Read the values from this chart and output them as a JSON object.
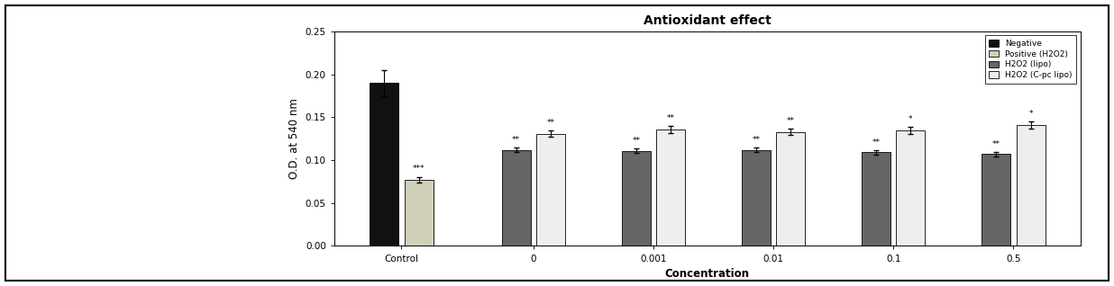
{
  "title": "Antioxidant effect",
  "xlabel": "Concentration",
  "ylabel": "O.D. at 540 nm",
  "categories": [
    "Control",
    "0",
    "0.001",
    "0.01",
    "0.1",
    "0.5"
  ],
  "series": {
    "Negative": {
      "color": "#111111",
      "values": [
        0.19,
        null,
        null,
        null,
        null,
        null
      ],
      "errors": [
        0.015,
        null,
        null,
        null,
        null,
        null
      ]
    },
    "Positive (H2O2)": {
      "color": "#d0d0b8",
      "values": [
        0.077,
        null,
        null,
        null,
        null,
        null
      ],
      "errors": [
        0.003,
        null,
        null,
        null,
        null,
        null
      ]
    },
    "H2O2 (lipo)": {
      "color": "#666666",
      "values": [
        null,
        0.112,
        0.111,
        0.112,
        0.109,
        0.107
      ],
      "errors": [
        null,
        0.003,
        0.003,
        0.003,
        0.003,
        0.003
      ]
    },
    "H2O2 (C-pc lipo)": {
      "color": "#eeeeee",
      "values": [
        null,
        0.131,
        0.136,
        0.133,
        0.135,
        0.141
      ],
      "errors": [
        null,
        0.004,
        0.004,
        0.004,
        0.004,
        0.004
      ]
    }
  },
  "annotations_lipo": [
    "**",
    "**",
    "**",
    "**",
    "**"
  ],
  "annotations_clipo": [
    "**",
    "**",
    "**",
    "*",
    "*"
  ],
  "annotation_positive": "***",
  "ylim": [
    0.0,
    0.25
  ],
  "yticks": [
    0.0,
    0.05,
    0.1,
    0.15,
    0.2,
    0.25
  ],
  "bar_width": 0.12,
  "figsize": [
    12.36,
    3.18
  ],
  "dpi": 100,
  "background_color": "#ffffff",
  "legend_fontsize": 6.5,
  "tick_fontsize": 7.5,
  "label_fontsize": 8.5,
  "title_fontsize": 10,
  "annot_size": 6.5
}
